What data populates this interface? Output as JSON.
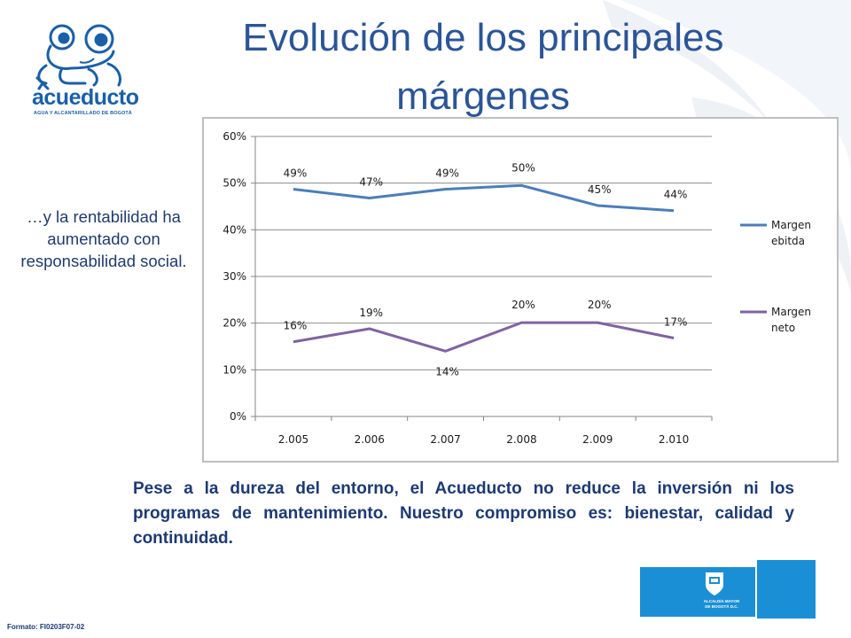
{
  "logo": {
    "word": "acueducto",
    "subtitle": "AGUA Y ALCANTARILLADO DE BOGOTÁ"
  },
  "title": "Evolución de los principales márgenes",
  "side_text": "…y la rentabilidad ha aumentado con responsabilidad social.",
  "body_text": "Pese a la dureza del entorno,  el Acueducto no reduce la inversión ni los  programas de mantenimiento. Nuestro compromiso es: bienestar,  calidad y continuidad.",
  "footer": {
    "code": "Formato: FI0203F07-02"
  },
  "badge": {
    "name_line1": "ALCALDÍA MAYOR",
    "name_line2": "DE BOGOTÁ D.C."
  },
  "colors": {
    "title": "#2a5597",
    "series1": "#4a7ebb",
    "series2": "#7f63a1",
    "badge": "#1b8fd6"
  },
  "chart_data": {
    "type": "line",
    "title": "",
    "xlabel": "",
    "ylabel": "",
    "categories": [
      "2.005",
      "2.006",
      "2.007",
      "2.008",
      "2.009",
      "2.010"
    ],
    "ylim": [
      0,
      60
    ],
    "yticks": [
      "0%",
      "10%",
      "20%",
      "30%",
      "40%",
      "50%",
      "60%"
    ],
    "grid": true,
    "legend_position": "right",
    "series": [
      {
        "name": "Margen ebitda",
        "legend_lines": [
          "Margen",
          "ebitda"
        ],
        "values": [
          48.7,
          46.8,
          48.7,
          49.5,
          45.2,
          44.1
        ],
        "labels": [
          "49%",
          "47%",
          "49%",
          "50%",
          "45%",
          "44%"
        ],
        "color": "#4a7ebb"
      },
      {
        "name": "Margen neto",
        "legend_lines": [
          "Margen",
          "neto"
        ],
        "values": [
          16.0,
          18.8,
          14.0,
          20.1,
          20.1,
          16.8
        ],
        "labels": [
          "16%",
          "19%",
          "14%",
          "20%",
          "20%",
          "17%"
        ],
        "color": "#7f63a1"
      }
    ]
  }
}
